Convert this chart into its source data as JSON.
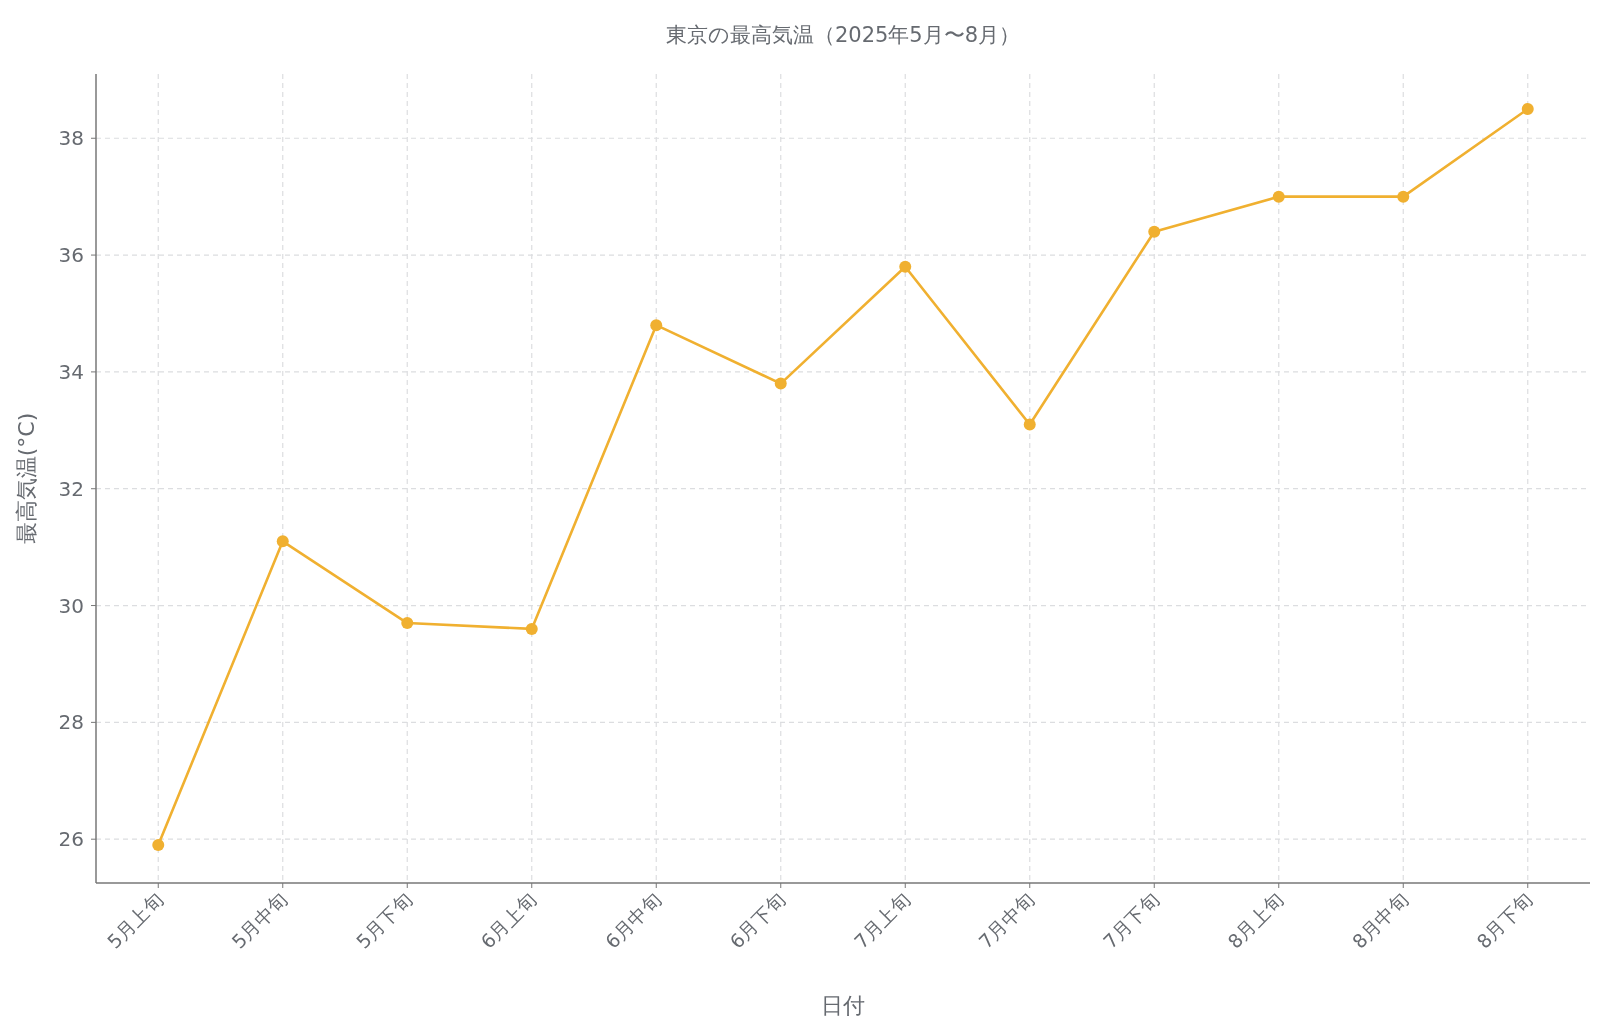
{
  "chart_data": {
    "type": "line",
    "title": "東京の最高気温（2025年5月〜8月）",
    "xlabel": "日付",
    "ylabel": "最高気温(°C)",
    "categories": [
      "5月上旬",
      "5月中旬",
      "5月下旬",
      "6月上旬",
      "6月中旬",
      "6月下旬",
      "7月上旬",
      "7月中旬",
      "7月下旬",
      "8月上旬",
      "8月中旬",
      "8月下旬"
    ],
    "series": [
      {
        "color": "#f0b030",
        "values": [
          25.9,
          31.1,
          29.7,
          29.6,
          34.8,
          33.8,
          35.8,
          33.1,
          36.4,
          37.0,
          37.0,
          38.5
        ]
      }
    ],
    "ylim": [
      25.25,
      39.1
    ],
    "yticks": [
      26,
      28,
      30,
      32,
      34,
      36,
      38
    ],
    "grid": true,
    "marker": "circle",
    "line_style": "solid"
  }
}
